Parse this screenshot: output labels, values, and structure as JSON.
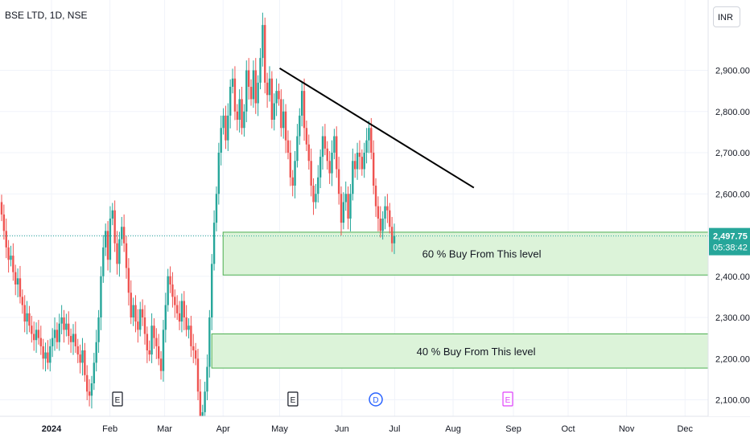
{
  "header": {
    "symbol_title": "BSE LTD, 1D, NSE",
    "currency": "INR"
  },
  "colors": {
    "up": "#26a69a",
    "down": "#ef5350",
    "zone_fill": "#dcf3d9",
    "zone_border": "#4caf50",
    "trendline": "#000000",
    "price_badge": "#26a69a",
    "axis_text": "#131722",
    "grid": "#f0f3fa"
  },
  "price_badge": {
    "price": "2,497.75",
    "countdown": "05:38:42"
  },
  "chart_data": {
    "type": "candlestick",
    "title": "BSE LTD, 1D, NSE",
    "ylim": [
      2060,
      3025
    ],
    "y_ticks": [
      "2,100.00",
      "2,200.00",
      "2,300.00",
      "2,400.00",
      "2,500.00",
      "2,600.00",
      "2,700.00",
      "2,800.00",
      "2,900.00"
    ],
    "x_ticks": [
      {
        "label": "2024",
        "date": "2024-01-01"
      },
      {
        "label": "Feb",
        "date": "2024-02-01"
      },
      {
        "label": "Mar",
        "date": "2024-03-01"
      },
      {
        "label": "Apr",
        "date": "2024-04-01"
      },
      {
        "label": "May",
        "date": "2024-05-01"
      },
      {
        "label": "Jun",
        "date": "2024-06-03"
      },
      {
        "label": "Jul",
        "date": "2024-07-01"
      },
      {
        "label": "Aug",
        "date": "2024-08-01"
      },
      {
        "label": "Sep",
        "date": "2024-09-02"
      },
      {
        "label": "Oct",
        "date": "2024-10-01"
      },
      {
        "label": "Nov",
        "date": "2024-11-01"
      },
      {
        "label": "Dec",
        "date": "2024-12-02"
      }
    ],
    "series": [
      {
        "close": [
          2550,
          2510,
          2470,
          2440,
          2450,
          2410,
          2380,
          2395,
          2350,
          2330,
          2290,
          2310,
          2280,
          2260,
          2245,
          2270,
          2250,
          2230,
          2200,
          2215,
          2190,
          2230,
          2250,
          2270,
          2240,
          2285,
          2300,
          2270,
          2285,
          2255,
          2240,
          2260,
          2230,
          2210,
          2190,
          2220,
          2160,
          2120,
          2110,
          2140,
          2190,
          2240,
          2300,
          2400,
          2470,
          2510,
          2440,
          2540,
          2560,
          2480,
          2430,
          2490,
          2520,
          2480,
          2420,
          2360,
          2300,
          2330,
          2290,
          2270,
          2320,
          2300,
          2260,
          2220,
          2210,
          2280,
          2250,
          2230,
          2200,
          2170,
          2270,
          2330,
          2400,
          2380,
          2350,
          2330,
          2310,
          2290,
          2340,
          2300,
          2270,
          2280,
          2230,
          2220,
          2200,
          2120,
          2060,
          2070,
          2120,
          2180,
          2300,
          2430,
          2530,
          2600,
          2700,
          2760,
          2790,
          2730,
          2790,
          2860,
          2880,
          2800,
          2780,
          2830,
          2760,
          2800,
          2900,
          2860,
          2830,
          2900,
          2820,
          2870,
          2930,
          3010,
          2870,
          2840,
          2880,
          2780,
          2820,
          2850,
          2830,
          2760,
          2800,
          2730,
          2700,
          2640,
          2620,
          2680,
          2740,
          2790,
          2850,
          2760,
          2720,
          2680,
          2620,
          2580,
          2600,
          2640,
          2690,
          2740,
          2710,
          2680,
          2650,
          2700,
          2740,
          2660,
          2600,
          2530,
          2580,
          2600,
          2540,
          2600,
          2680,
          2660,
          2700,
          2690,
          2660,
          2700,
          2730,
          2760,
          2700,
          2620,
          2570,
          2540,
          2510,
          2540,
          2570,
          2560,
          2520,
          2480,
          2497.75
        ]
      }
    ],
    "lines": [
      {
        "type": "trendline",
        "from": [
          "2024-05-01",
          2905
        ],
        "to": [
          "2024-08-12",
          2615
        ]
      },
      {
        "type": "horizontal",
        "price": 2497.75,
        "style": "dotted"
      }
    ],
    "zones": [
      {
        "label": "60 % Buy From This level",
        "top": 2507,
        "bottom": 2403
      },
      {
        "label": "40 % Buy From This level",
        "top": 2260,
        "bottom": 2177
      }
    ],
    "event_markers": [
      {
        "label": "E",
        "type": "earnings",
        "color": "#131722",
        "date": "2024-02-05"
      },
      {
        "label": "E",
        "type": "earnings",
        "color": "#131722",
        "date": "2024-05-08"
      },
      {
        "label": "D",
        "type": "dividend",
        "color": "#2962ff",
        "date": "2024-06-21"
      },
      {
        "label": "E",
        "type": "earnings",
        "color": "#e040fb",
        "date": "2024-08-30"
      }
    ]
  }
}
